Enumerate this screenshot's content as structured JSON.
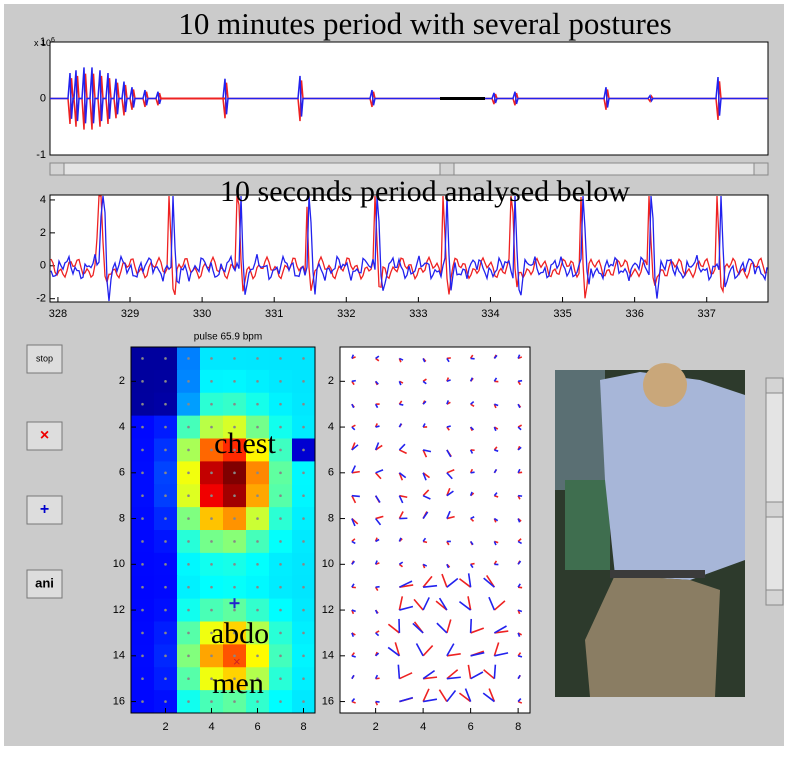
{
  "window": {
    "signal_plot": {
      "title": "10 minutes period with several postures",
      "exponent": {
        "base": "x 10",
        "power": "6"
      },
      "ylim": [
        -1,
        1
      ],
      "yticks": [
        -1,
        0,
        1
      ]
    },
    "detail_plot": {
      "title": "10 seconds period analysed below",
      "xlim": [
        327.89,
        337.85
      ],
      "ylim": [
        -2.2,
        4.3
      ],
      "xticks": [
        328,
        329,
        330,
        331,
        332,
        333,
        334,
        335,
        336,
        337
      ],
      "yticks": [
        -2,
        0,
        2,
        4
      ],
      "xlabel": "pulse 65.9 bpm"
    },
    "buttons": [
      "stop",
      "×",
      "+",
      "ani"
    ],
    "heatmap": {
      "xlim": [
        0.5,
        8.5
      ],
      "ylim": [
        16.5,
        0.5
      ],
      "xticks": [
        2,
        4,
        6,
        8
      ],
      "yticks": [
        2,
        4,
        6,
        8,
        10,
        12,
        14,
        16
      ],
      "annotations": [
        "chest",
        "abdo",
        "men"
      ]
    },
    "quiver": {
      "xlim": [
        0.5,
        8.5
      ],
      "ylim": [
        16.5,
        0.5
      ],
      "xticks": [
        2,
        4,
        6,
        8
      ],
      "yticks": [
        2,
        4,
        6,
        8,
        10,
        12,
        14,
        16
      ]
    }
  }
}
